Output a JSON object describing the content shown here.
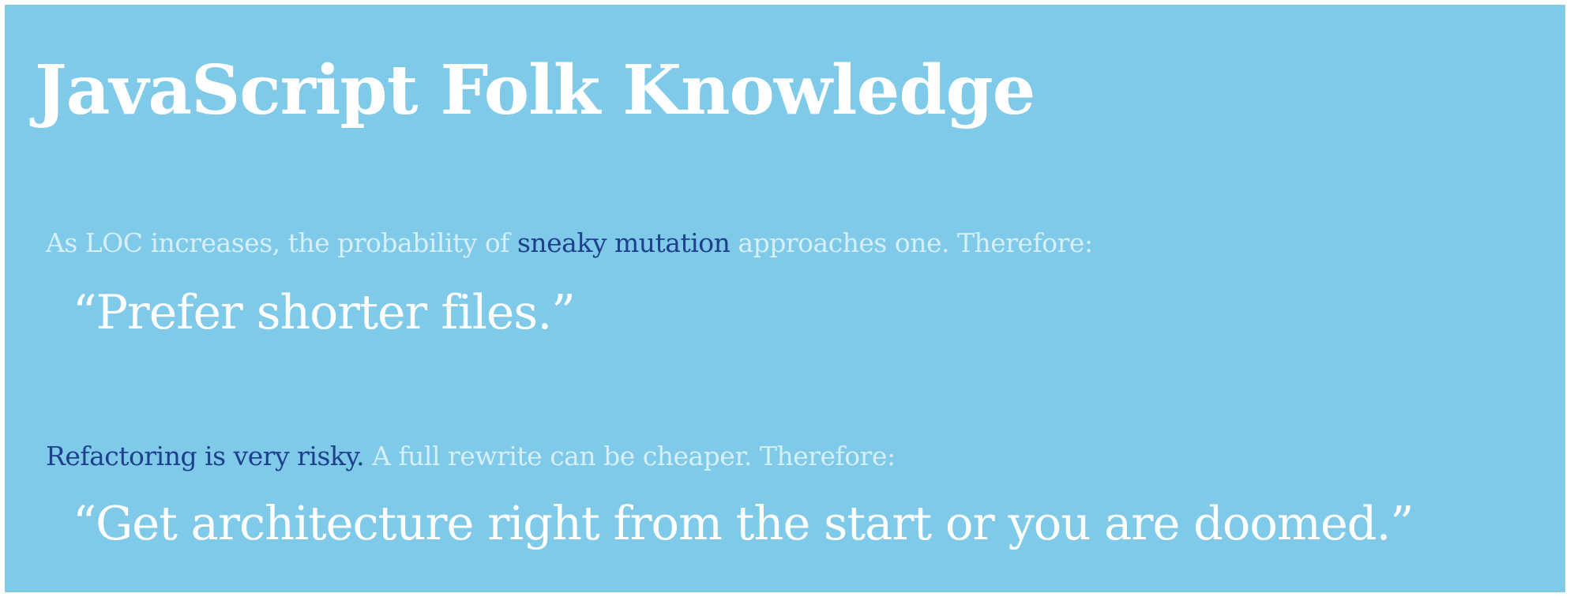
{
  "slide": {
    "title": "JavaScript Folk Knowledge",
    "points": [
      {
        "premise_before": "As LOC increases, the probability of ",
        "premise_highlight": "sneaky mutation",
        "premise_after": " approaches one. Therefore:",
        "quote": "“Prefer shorter files.”"
      },
      {
        "premise_before": "",
        "premise_highlight": "Refactoring is very risky.",
        "premise_after": " A full rewrite can be cheaper. Therefore:",
        "quote": "“Get architecture right from the start or you are doomed.”"
      }
    ]
  },
  "colors": {
    "background": "#7ecae8",
    "title": "#ffffff",
    "premise_text": "#d6eff8",
    "highlight": "#1f3f8c",
    "quote": "#ffffff"
  }
}
